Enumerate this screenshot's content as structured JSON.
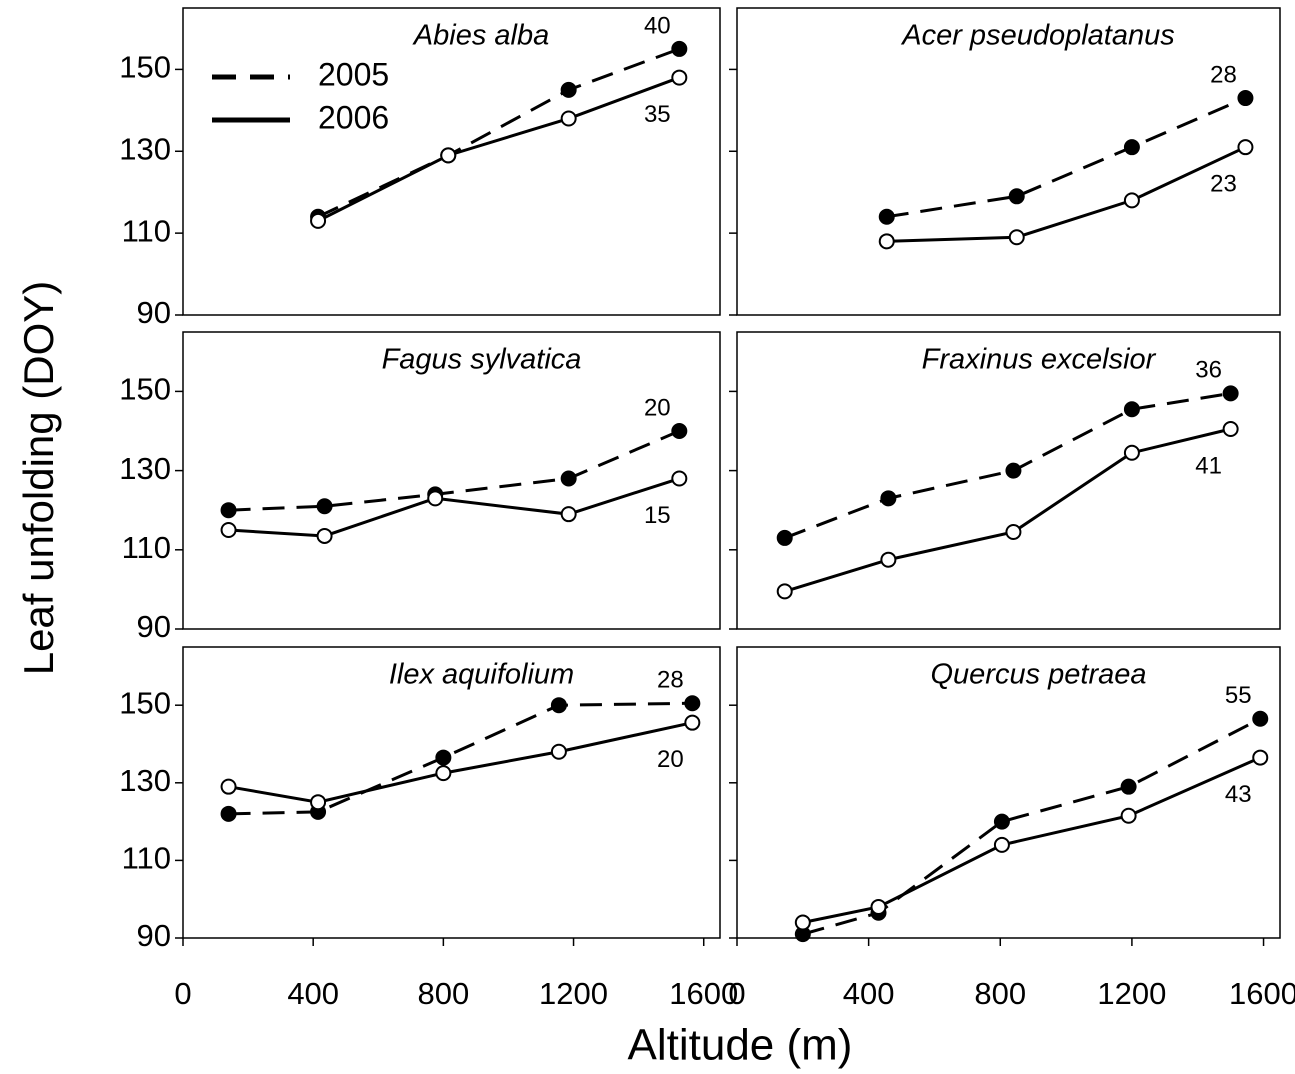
{
  "ylabel": "Leaf unfolding (DOY)",
  "xlabel": "Altitude (m)",
  "chart_data": [
    {
      "type": "line",
      "title": "Abies alba",
      "legend": "upper left",
      "x": [
        415,
        815,
        1185,
        1525
      ],
      "xlim": [
        0,
        1650
      ],
      "ylim": [
        90,
        165
      ],
      "yticks": [
        90,
        110,
        130,
        150
      ],
      "series": [
        {
          "name": "2005",
          "color": "#000000",
          "style": "dashed",
          "marker": "filled",
          "values": [
            114,
            129,
            145,
            155
          ],
          "end_label": 40
        },
        {
          "name": "2006",
          "color": "#000000",
          "style": "solid",
          "marker": "open",
          "values": [
            113,
            129,
            138,
            148
          ],
          "end_label": 35
        }
      ]
    },
    {
      "type": "line",
      "title": "Acer pseudoplatanus",
      "x": [
        455,
        850,
        1200,
        1545
      ],
      "xlim": [
        0,
        1650
      ],
      "ylim": [
        90,
        165
      ],
      "yticks": [
        90,
        110,
        130,
        150
      ],
      "series": [
        {
          "name": "2005",
          "color": "#000000",
          "style": "dashed",
          "marker": "filled",
          "values": [
            114,
            119,
            131,
            143
          ],
          "end_label": 28
        },
        {
          "name": "2006",
          "color": "#000000",
          "style": "solid",
          "marker": "open",
          "values": [
            108,
            109,
            118,
            131
          ],
          "end_label": 23
        }
      ]
    },
    {
      "type": "line",
      "title": "Fagus sylvatica",
      "x": [
        140,
        435,
        775,
        1185,
        1525
      ],
      "xlim": [
        0,
        1650
      ],
      "ylim": [
        90,
        165
      ],
      "yticks": [
        90,
        110,
        130,
        150
      ],
      "series": [
        {
          "name": "2005",
          "color": "#000000",
          "style": "dashed",
          "marker": "filled",
          "values": [
            120,
            121,
            124,
            128,
            140
          ],
          "end_label": 20
        },
        {
          "name": "2006",
          "color": "#000000",
          "style": "solid",
          "marker": "open",
          "values": [
            115,
            113.5,
            123,
            119,
            128
          ],
          "end_label": 15
        }
      ]
    },
    {
      "type": "line",
      "title": "Fraxinus excelsior",
      "x": [
        145,
        460,
        840,
        1200,
        1500
      ],
      "xlim": [
        0,
        1650
      ],
      "ylim": [
        90,
        165
      ],
      "yticks": [
        90,
        110,
        130,
        150
      ],
      "series": [
        {
          "name": "2005",
          "color": "#000000",
          "style": "dashed",
          "marker": "filled",
          "values": [
            113,
            123,
            130,
            145.5,
            149.5
          ],
          "end_label": 36
        },
        {
          "name": "2006",
          "color": "#000000",
          "style": "solid",
          "marker": "open",
          "values": [
            99.5,
            107.5,
            114.5,
            134.5,
            140.5
          ],
          "end_label": 41
        }
      ]
    },
    {
      "type": "line",
      "title": "Ilex aquifolium",
      "x": [
        140,
        415,
        800,
        1155,
        1565
      ],
      "xlim": [
        0,
        1650
      ],
      "ylim": [
        90,
        165
      ],
      "yticks": [
        90,
        110,
        130,
        150
      ],
      "xticks": [
        0,
        400,
        800,
        1200,
        1600
      ],
      "series": [
        {
          "name": "2005",
          "color": "#000000",
          "style": "dashed",
          "marker": "filled",
          "values": [
            122,
            122.5,
            136.5,
            150,
            150.5
          ],
          "end_label": 28
        },
        {
          "name": "2006",
          "color": "#000000",
          "style": "solid",
          "marker": "open",
          "values": [
            129,
            125,
            132.5,
            138,
            145.5
          ],
          "end_label": 20
        }
      ]
    },
    {
      "type": "line",
      "title": "Quercus petraea",
      "x": [
        200,
        430,
        805,
        1190,
        1590
      ],
      "xlim": [
        0,
        1650
      ],
      "ylim": [
        90,
        165
      ],
      "yticks": [
        90,
        110,
        130,
        150
      ],
      "xticks": [
        0,
        400,
        800,
        1200,
        1600
      ],
      "series": [
        {
          "name": "2005",
          "color": "#000000",
          "style": "dashed",
          "marker": "filled",
          "values": [
            91,
            96.5,
            120,
            129,
            146.5
          ],
          "end_label": 55
        },
        {
          "name": "2006",
          "color": "#000000",
          "style": "solid",
          "marker": "open",
          "values": [
            94,
            98,
            114,
            121.5,
            136.5
          ],
          "end_label": 43
        }
      ]
    }
  ]
}
